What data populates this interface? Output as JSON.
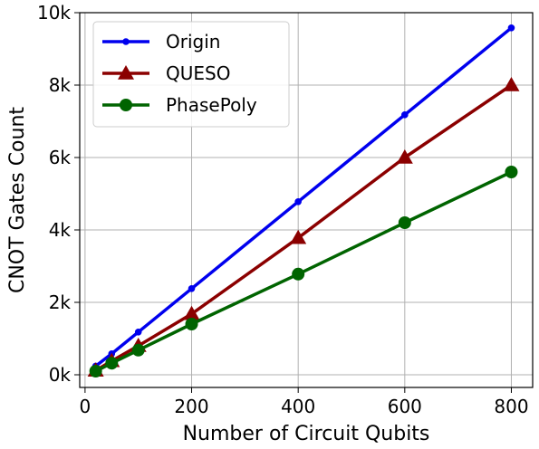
{
  "chart_data": {
    "type": "line",
    "title": "",
    "xlabel": "Number of Circuit Qubits",
    "ylabel": "CNOT Gates Count",
    "x": [
      20,
      50,
      100,
      200,
      400,
      600,
      800
    ],
    "xlim": [
      -10,
      840
    ],
    "ylim": [
      -350,
      10000
    ],
    "xticks": [
      0,
      200,
      400,
      600,
      800
    ],
    "xtick_labels": [
      "0",
      "200",
      "400",
      "600",
      "800"
    ],
    "yticks": [
      0,
      2000,
      4000,
      6000,
      8000,
      10000
    ],
    "ytick_labels": [
      "0k",
      "2k",
      "4k",
      "6k",
      "8k",
      "10k"
    ],
    "grid": true,
    "legend_position": "top-left",
    "series": [
      {
        "name": "Origin",
        "color": "#0000ee",
        "marker": "dot",
        "values": [
          240,
          580,
          1180,
          2380,
          4780,
          7180,
          9580
        ]
      },
      {
        "name": "QUESO",
        "color": "#8b0000",
        "marker": "triangle",
        "values": [
          120,
          380,
          800,
          1680,
          3780,
          6000,
          8000
        ]
      },
      {
        "name": "PhasePoly",
        "color": "#006400",
        "marker": "circle",
        "values": [
          100,
          320,
          680,
          1400,
          2780,
          4200,
          5600
        ]
      }
    ]
  }
}
